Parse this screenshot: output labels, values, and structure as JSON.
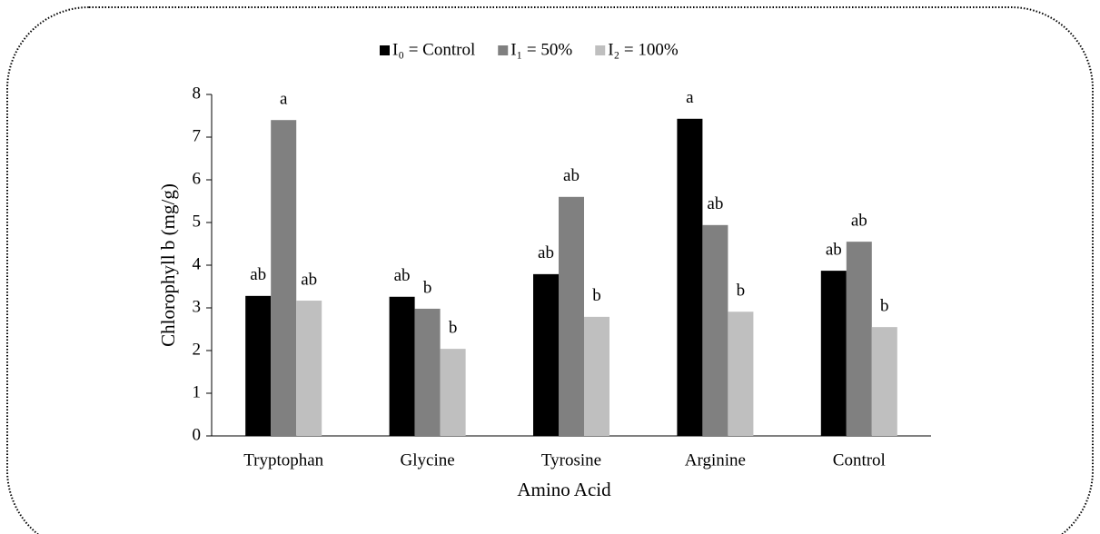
{
  "chart_data": {
    "type": "bar",
    "x_label": "Amino Acid",
    "y_label": "Chlorophyll b (mg/g)",
    "categories": [
      "Tryptophan",
      "Glycine",
      "Tyrosine",
      "Arginine",
      "Control"
    ],
    "series": [
      {
        "name": "I₀ = Control",
        "color": "#000000",
        "values": [
          3.28,
          3.26,
          3.79,
          7.43,
          3.87
        ],
        "letters": [
          "ab",
          "ab",
          "ab",
          "a",
          "ab"
        ]
      },
      {
        "name": "I₁ = 50%",
        "color": "#808080",
        "values": [
          7.4,
          2.98,
          5.6,
          4.94,
          4.55
        ],
        "letters": [
          "a",
          "b",
          "ab",
          "ab",
          "ab"
        ]
      },
      {
        "name": "I₂ = 100%",
        "color": "#bfbfbf",
        "values": [
          3.17,
          2.04,
          2.79,
          2.91,
          2.55
        ],
        "letters": [
          "ab",
          "b",
          "b",
          "b",
          "b"
        ]
      }
    ],
    "ylim": [
      0,
      8
    ],
    "yticks": [
      0,
      1,
      2,
      3,
      4,
      5,
      6,
      7,
      8
    ],
    "grid": false,
    "legend": "top"
  }
}
